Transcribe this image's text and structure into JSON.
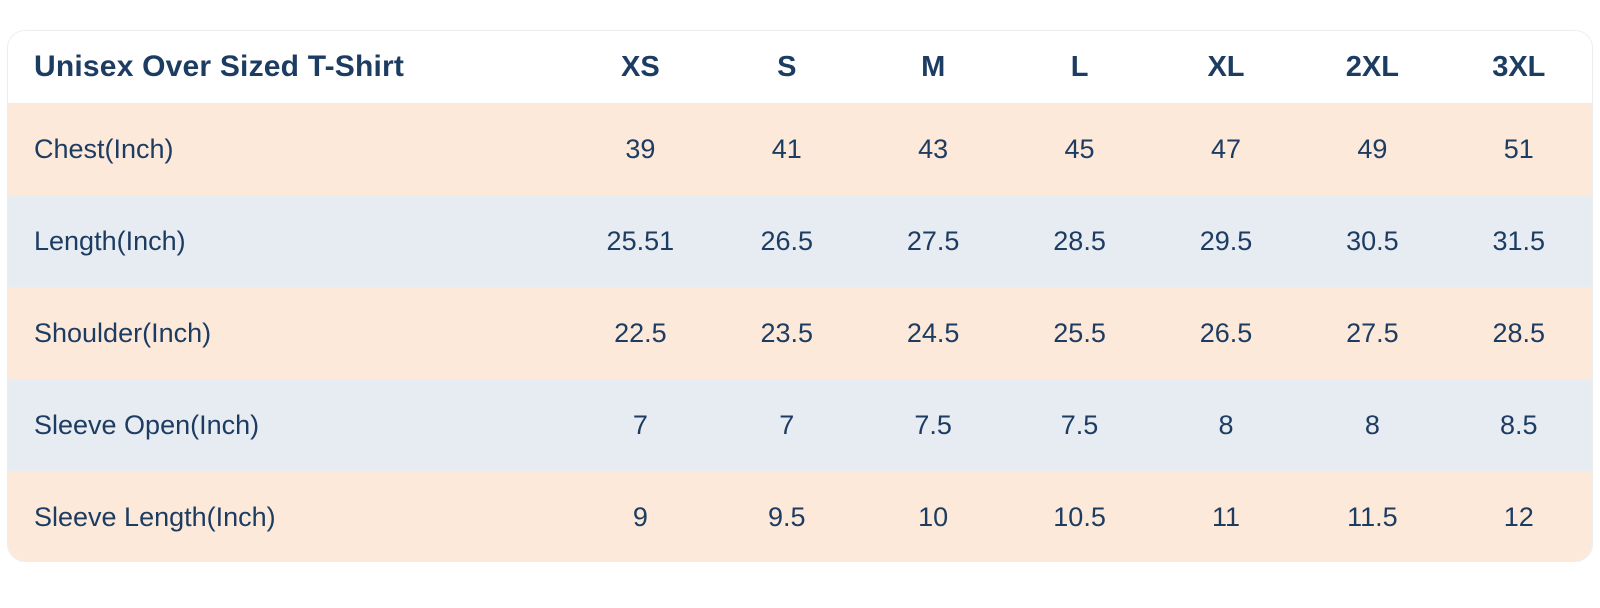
{
  "chart_data": {
    "type": "table",
    "title": "Unisex Over Sized T-Shirt",
    "columns": [
      "XS",
      "S",
      "M",
      "L",
      "XL",
      "2XL",
      "3XL"
    ],
    "rows": [
      {
        "label": "Chest(Inch)",
        "values": [
          "39",
          "41",
          "43",
          "45",
          "47",
          "49",
          "51"
        ]
      },
      {
        "label": "Length(Inch)",
        "values": [
          "25.51",
          "26.5",
          "27.5",
          "28.5",
          "29.5",
          "30.5",
          "31.5"
        ]
      },
      {
        "label": "Shoulder(Inch)",
        "values": [
          "22.5",
          "23.5",
          "24.5",
          "25.5",
          "26.5",
          "27.5",
          "28.5"
        ]
      },
      {
        "label": "Sleeve Open(Inch)",
        "values": [
          "7",
          "7",
          "7.5",
          "7.5",
          "8",
          "8",
          "8.5"
        ]
      },
      {
        "label": "Sleeve Length(Inch)",
        "values": [
          "9",
          "9.5",
          "10",
          "10.5",
          "11",
          "11.5",
          "12"
        ]
      }
    ],
    "layout_hints": {
      "unit": "Inch",
      "row_striping": "alternating",
      "first_data_row_style": "odd"
    }
  },
  "colors": {
    "row_odd": "#fce9da",
    "row_even": "#e7ebf2",
    "text": "#1d3c62",
    "card_border": "#ededed",
    "background": "#ffffff"
  }
}
